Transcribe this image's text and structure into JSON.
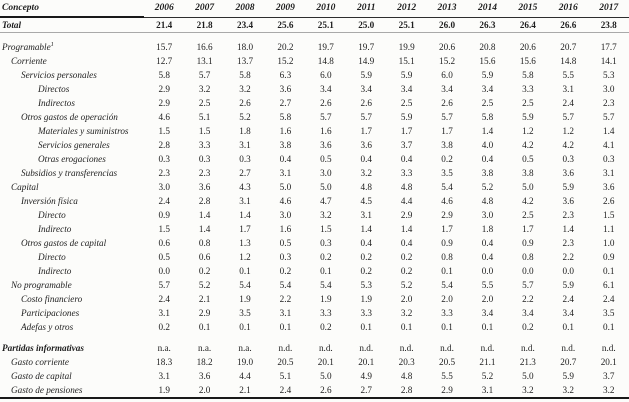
{
  "colors": {
    "background": "#fcfcfa",
    "text": "#1e1e1e",
    "rule_dark": "#191919",
    "rule_light": "#a9a9a9"
  },
  "table": {
    "stub_header": "Concepto",
    "years": [
      "2006",
      "2007",
      "2008",
      "2009",
      "2010",
      "2011",
      "2012",
      "2013",
      "2014",
      "2015",
      "2016",
      "2017"
    ],
    "rows": [
      {
        "label": "Total",
        "level": 0,
        "bold": true,
        "rule_below": true,
        "values": [
          "21.4",
          "21.8",
          "23.4",
          "25.6",
          "25.1",
          "25.0",
          "25.1",
          "26.0",
          "26.3",
          "26.4",
          "26.6",
          "23.8"
        ]
      },
      {
        "label": "Programable",
        "sup": "1",
        "level": 0,
        "gap_before": true,
        "values": [
          "15.7",
          "16.6",
          "18.0",
          "20.2",
          "19.7",
          "19.7",
          "19.9",
          "20.6",
          "20.8",
          "20.6",
          "20.7",
          "17.7"
        ]
      },
      {
        "label": "Corriente",
        "level": 1,
        "values": [
          "12.7",
          "13.1",
          "13.7",
          "15.2",
          "14.8",
          "14.9",
          "15.1",
          "15.2",
          "15.6",
          "15.6",
          "14.8",
          "14.1"
        ]
      },
      {
        "label": "Servicios personales",
        "level": 2,
        "values": [
          "5.8",
          "5.7",
          "5.8",
          "6.3",
          "6.0",
          "5.9",
          "5.9",
          "6.0",
          "5.9",
          "5.8",
          "5.5",
          "5.3"
        ]
      },
      {
        "label": "Directos",
        "level": 3,
        "values": [
          "2.9",
          "3.2",
          "3.2",
          "3.6",
          "3.4",
          "3.4",
          "3.4",
          "3.4",
          "3.4",
          "3.3",
          "3.1",
          "3.0"
        ]
      },
      {
        "label": "Indirectos",
        "level": 3,
        "values": [
          "2.9",
          "2.5",
          "2.6",
          "2.7",
          "2.6",
          "2.6",
          "2.5",
          "2.6",
          "2.5",
          "2.5",
          "2.4",
          "2.3"
        ]
      },
      {
        "label": "Otros gastos de operación",
        "level": 2,
        "values": [
          "4.6",
          "5.1",
          "5.2",
          "5.8",
          "5.7",
          "5.7",
          "5.9",
          "5.7",
          "5.8",
          "5.9",
          "5.7",
          "5.7"
        ]
      },
      {
        "label": "Materiales y suministros",
        "level": 3,
        "values": [
          "1.5",
          "1.5",
          "1.8",
          "1.6",
          "1.6",
          "1.7",
          "1.7",
          "1.7",
          "1.4",
          "1.2",
          "1.2",
          "1.4"
        ]
      },
      {
        "label": "Servicios generales",
        "level": 3,
        "values": [
          "2.8",
          "3.3",
          "3.1",
          "3.8",
          "3.6",
          "3.6",
          "3.7",
          "3.8",
          "4.0",
          "4.2",
          "4.2",
          "4.1"
        ]
      },
      {
        "label": "Otras erogaciones",
        "level": 3,
        "values": [
          "0.3",
          "0.3",
          "0.3",
          "0.4",
          "0.5",
          "0.4",
          "0.4",
          "0.2",
          "0.4",
          "0.5",
          "0.3",
          "0.3"
        ]
      },
      {
        "label": "Subsidios y transferencias",
        "level": 2,
        "values": [
          "2.3",
          "2.3",
          "2.7",
          "3.1",
          "3.0",
          "3.2",
          "3.3",
          "3.5",
          "3.8",
          "3.8",
          "3.6",
          "3.1"
        ]
      },
      {
        "label": "Capital",
        "level": 1,
        "values": [
          "3.0",
          "3.6",
          "4.3",
          "5.0",
          "5.0",
          "4.8",
          "4.8",
          "5.4",
          "5.2",
          "5.0",
          "5.9",
          "3.6"
        ]
      },
      {
        "label": "Inversión física",
        "level": 2,
        "values": [
          "2.4",
          "2.8",
          "3.1",
          "4.6",
          "4.7",
          "4.5",
          "4.4",
          "4.6",
          "4.8",
          "4.2",
          "3.6",
          "2.6"
        ]
      },
      {
        "label": "Directo",
        "level": 3,
        "values": [
          "0.9",
          "1.4",
          "1.4",
          "3.0",
          "3.2",
          "3.1",
          "2.9",
          "2.9",
          "3.0",
          "2.5",
          "2.3",
          "1.5"
        ]
      },
      {
        "label": "Indirecto",
        "level": 3,
        "values": [
          "1.5",
          "1.4",
          "1.7",
          "1.6",
          "1.5",
          "1.4",
          "1.4",
          "1.7",
          "1.8",
          "1.7",
          "1.4",
          "1.1"
        ]
      },
      {
        "label": "Otros gastos de capital",
        "level": 2,
        "values": [
          "0.6",
          "0.8",
          "1.3",
          "0.5",
          "0.3",
          "0.4",
          "0.4",
          "0.9",
          "0.4",
          "0.9",
          "2.3",
          "1.0"
        ]
      },
      {
        "label": "Directo",
        "level": 3,
        "values": [
          "0.5",
          "0.6",
          "1.2",
          "0.3",
          "0.2",
          "0.2",
          "0.2",
          "0.8",
          "0.4",
          "0.8",
          "2.2",
          "0.9"
        ]
      },
      {
        "label": "Indirecto",
        "level": 3,
        "values": [
          "0.0",
          "0.2",
          "0.1",
          "0.2",
          "0.1",
          "0.2",
          "0.2",
          "0.1",
          "0.0",
          "0.0",
          "0.0",
          "0.1"
        ]
      },
      {
        "label": "No programable",
        "level": 1,
        "values": [
          "5.7",
          "5.2",
          "5.4",
          "5.4",
          "5.4",
          "5.3",
          "5.2",
          "5.4",
          "5.5",
          "5.7",
          "5.9",
          "6.1"
        ]
      },
      {
        "label": "Costo financiero",
        "level": 2,
        "values": [
          "2.4",
          "2.1",
          "1.9",
          "2.2",
          "1.9",
          "1.9",
          "2.0",
          "2.0",
          "2.0",
          "2.2",
          "2.4",
          "2.4"
        ]
      },
      {
        "label": "Participaciones",
        "level": 2,
        "values": [
          "3.1",
          "2.9",
          "3.5",
          "3.1",
          "3.3",
          "3.3",
          "3.2",
          "3.3",
          "3.4",
          "3.4",
          "3.4",
          "3.5"
        ]
      },
      {
        "label": "Adefas y otros",
        "level": 2,
        "values": [
          "0.2",
          "0.1",
          "0.1",
          "0.1",
          "0.2",
          "0.1",
          "0.1",
          "0.1",
          "0.1",
          "0.2",
          "0.1",
          "0.1"
        ]
      },
      {
        "label": "Partidas informativas",
        "level": 0,
        "bold": true,
        "gap_before": true,
        "values": [
          "n.a.",
          "n.a.",
          "n.a.",
          "n.d.",
          "n.d.",
          "n.d.",
          "n.d.",
          "n.d.",
          "n.d.",
          "n.d.",
          "n.d.",
          "n.d."
        ]
      },
      {
        "label": "Gasto corriente",
        "level": 1,
        "values": [
          "18.3",
          "18.2",
          "19.0",
          "20.5",
          "20.1",
          "20.1",
          "20.3",
          "20.5",
          "21.1",
          "21.3",
          "20.7",
          "20.1"
        ]
      },
      {
        "label": "Gasto de capital",
        "level": 1,
        "values": [
          "3.1",
          "3.6",
          "4.4",
          "5.1",
          "5.0",
          "4.9",
          "4.8",
          "5.5",
          "5.2",
          "5.0",
          "5.9",
          "3.7"
        ]
      },
      {
        "label": "Gasto de pensiones",
        "level": 1,
        "values": [
          "1.9",
          "2.0",
          "2.1",
          "2.4",
          "2.6",
          "2.7",
          "2.8",
          "2.9",
          "3.1",
          "3.2",
          "3.2",
          "3.2"
        ]
      }
    ]
  }
}
